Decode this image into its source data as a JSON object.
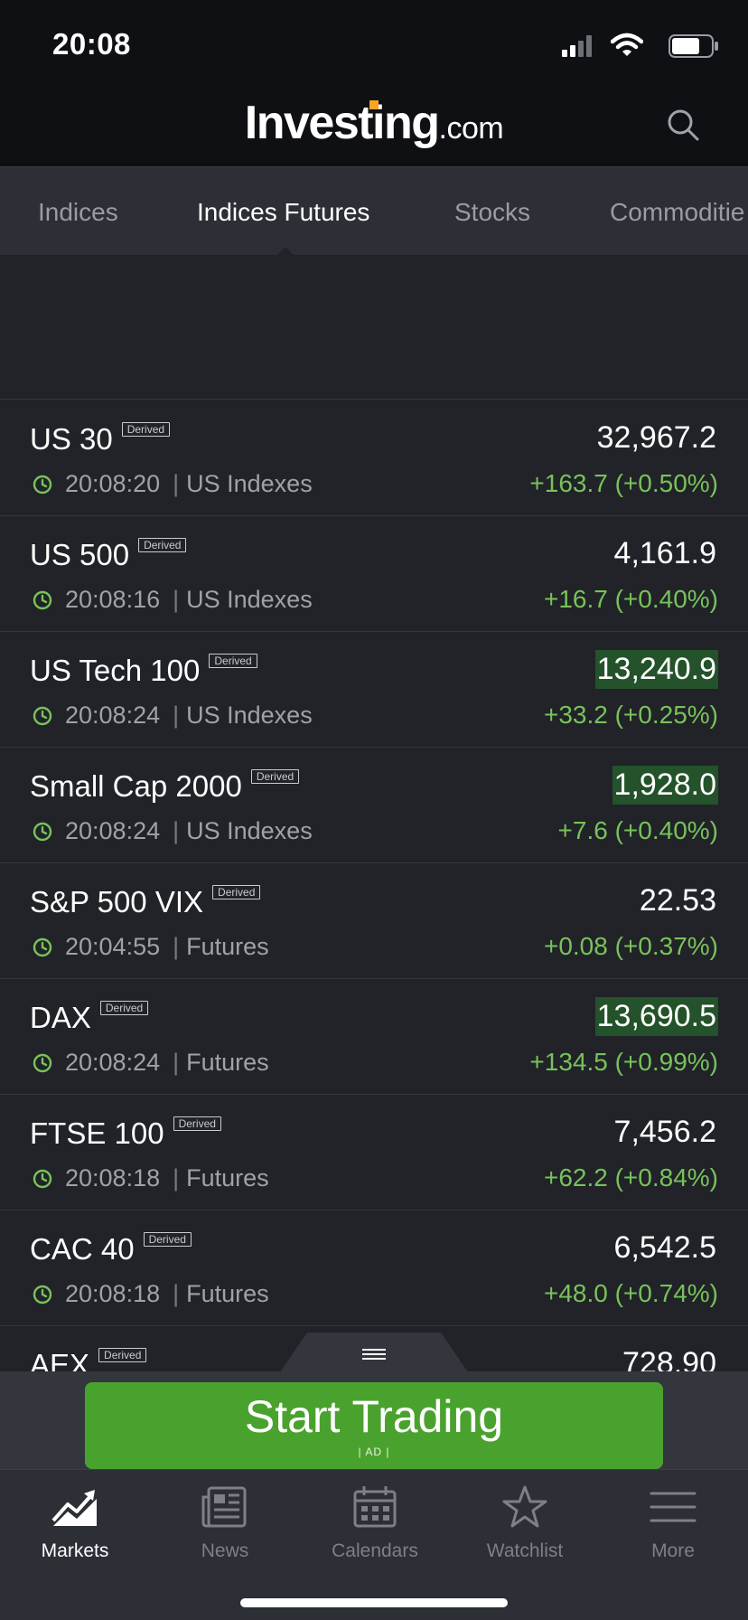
{
  "status_bar": {
    "time": "20:08"
  },
  "header": {
    "logo_main": "Investing",
    "logo_suffix": ".com",
    "brand_accent": "#f5a623"
  },
  "tabs": [
    {
      "label": "Indices",
      "active": false
    },
    {
      "label": "Indices Futures",
      "active": true
    },
    {
      "label": "Stocks",
      "active": false
    },
    {
      "label": "Commoditie",
      "active": false
    }
  ],
  "badge_text": "Derived",
  "rows": [
    {
      "name": "US 30",
      "time": "20:08:20",
      "category": "US Indexes",
      "price": "32,967.2",
      "change": "+163.7 (+0.50%)",
      "flash": false
    },
    {
      "name": "US 500",
      "time": "20:08:16",
      "category": "US Indexes",
      "price": "4,161.9",
      "change": "+16.7 (+0.40%)",
      "flash": false
    },
    {
      "name": "US Tech 100",
      "time": "20:08:24",
      "category": "US Indexes",
      "price": "13,240.9",
      "change": "+33.2 (+0.25%)",
      "flash": true
    },
    {
      "name": "Small Cap 2000",
      "time": "20:08:24",
      "category": "US Indexes",
      "price": "1,928.0",
      "change": "+7.6 (+0.40%)",
      "flash": true
    },
    {
      "name": "S&P 500 VIX",
      "time": "20:04:55",
      "category": "Futures",
      "price": "22.53",
      "change": "+0.08 (+0.37%)",
      "flash": false
    },
    {
      "name": "DAX",
      "time": "20:08:24",
      "category": "Futures",
      "price": "13,690.5",
      "change": "+134.5 (+0.99%)",
      "flash": true
    },
    {
      "name": "FTSE 100",
      "time": "20:08:18",
      "category": "Futures",
      "price": "7,456.2",
      "change": "+62.2 (+0.84%)",
      "flash": false
    },
    {
      "name": "CAC 40",
      "time": "20:08:18",
      "category": "Futures",
      "price": "6,542.5",
      "change": "+48.0 (+0.74%)",
      "flash": false
    },
    {
      "name": "AEX",
      "time": "",
      "category": "",
      "price": "728.90",
      "change": "",
      "flash": false
    }
  ],
  "trade_banner": {
    "label": "Start Trading",
    "ad_label": "| AD |",
    "color": "#4aa22e"
  },
  "bottom_nav": [
    {
      "label": "Markets",
      "icon": "markets-chart-icon",
      "active": true
    },
    {
      "label": "News",
      "icon": "newspaper-icon",
      "active": false
    },
    {
      "label": "Calendars",
      "icon": "calendar-icon",
      "active": false
    },
    {
      "label": "Watchlist",
      "icon": "star-icon",
      "active": false
    },
    {
      "label": "More",
      "icon": "hamburger-menu-icon",
      "active": false
    }
  ],
  "colors": {
    "positive": "#78c25a",
    "flash_background": "#24522a",
    "background": "#212328"
  }
}
